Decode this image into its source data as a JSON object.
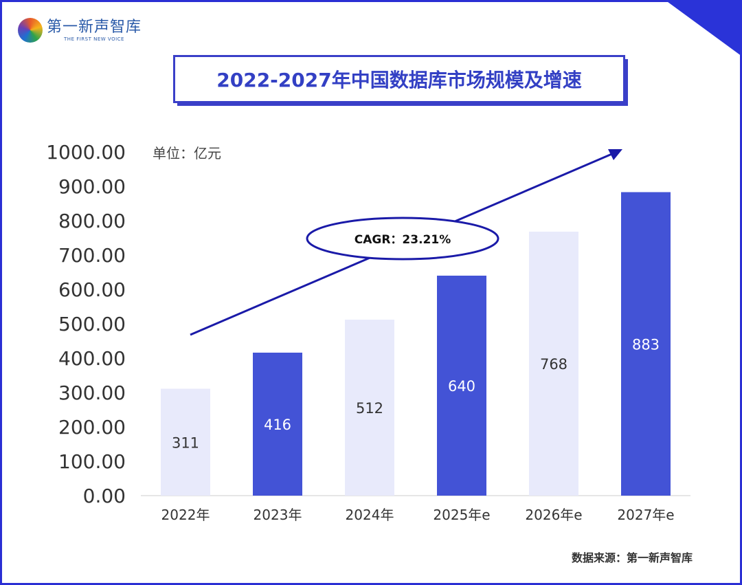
{
  "brand": {
    "name_cn": "第一新声智库",
    "name_en": "THE FIRST NEW VOICE"
  },
  "colors": {
    "frame": "#2b2fd4",
    "bar_light": "#e8eafb",
    "bar_dark": "#4353d6",
    "arrow": "#1a1aa8"
  },
  "chart_data": {
    "type": "bar",
    "title": "2022-2027年中国数据库市场规模及增速",
    "unit_label": "单位：亿元",
    "categories": [
      "2022年",
      "2023年",
      "2024年",
      "2025年e",
      "2026年e",
      "2027年e"
    ],
    "values": [
      311,
      416,
      512,
      640,
      768,
      883
    ],
    "value_labels": [
      "311",
      "416",
      "512",
      "640",
      "768",
      "883"
    ],
    "bar_styles": [
      "light",
      "dark",
      "light",
      "dark",
      "light",
      "dark"
    ],
    "ylim": [
      0,
      1000
    ],
    "yticks": [
      "0.00",
      "100.00",
      "200.00",
      "300.00",
      "400.00",
      "500.00",
      "600.00",
      "700.00",
      "800.00",
      "900.00",
      "1000.00"
    ],
    "grid": false,
    "annotation": "CAGR：23.21%",
    "source": "数据来源：第一新声智库"
  }
}
